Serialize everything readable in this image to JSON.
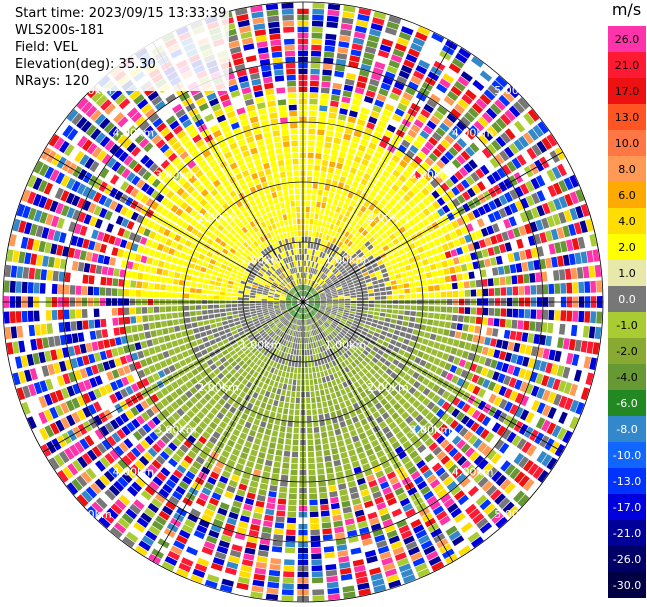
{
  "info": {
    "start_time": "Start time: 2023/09/15 13:33:39",
    "instrument": "WLS200s-181",
    "field": "Field: VEL",
    "elevation": "Elevation(deg): 35.30",
    "nrays": "NRays: 120"
  },
  "colorbar": {
    "unit": "m/s",
    "levels": [
      {
        "label": "26.0",
        "color": "#ff33aa"
      },
      {
        "label": "21.0",
        "color": "#ff1a33"
      },
      {
        "label": "17.0",
        "color": "#ee1111"
      },
      {
        "label": "13.0",
        "color": "#ff5522"
      },
      {
        "label": "10.0",
        "color": "#ff7744"
      },
      {
        "label": "8.0",
        "color": "#ff9955"
      },
      {
        "label": "6.0",
        "color": "#ffaa00"
      },
      {
        "label": "4.0",
        "color": "#ffdd00"
      },
      {
        "label": "2.0",
        "color": "#ffff00"
      },
      {
        "label": "1.0",
        "color": "#e8e8aa"
      },
      {
        "label": "0.0",
        "color": "#777777"
      },
      {
        "label": "-1.0",
        "color": "#aacc33"
      },
      {
        "label": "-2.0",
        "color": "#88aa33"
      },
      {
        "label": "-4.0",
        "color": "#669933"
      },
      {
        "label": "-6.0",
        "color": "#228822"
      },
      {
        "label": "-8.0",
        "color": "#3388cc"
      },
      {
        "label": "-10.0",
        "color": "#1166ff"
      },
      {
        "label": "-13.0",
        "color": "#0033ff"
      },
      {
        "label": "-17.0",
        "color": "#0000dd"
      },
      {
        "label": "-21.0",
        "color": "#000099"
      },
      {
        "label": "-26.0",
        "color": "#000066"
      },
      {
        "label": "-30.0",
        "color": "#000044"
      }
    ]
  },
  "chart_data": {
    "type": "heatmap",
    "projection": "polar-ppi",
    "field": "VEL",
    "rays": 120,
    "ring_labels": [
      "1.00km",
      "2.00km",
      "3.00km",
      "4.00km",
      "5.00km"
    ],
    "colors": {
      "near_positive": "#ffff00",
      "near_negative": "#99bb33",
      "near_zero": "#777777",
      "noise": [
        "#ff33aa",
        "#ff1a33",
        "#ffdd00",
        "#0033ff",
        "#000099",
        "#669933",
        "#3388cc",
        "#ff9955",
        "#aacc33",
        "#777777",
        "#ee1111",
        "#0000dd"
      ]
    }
  }
}
